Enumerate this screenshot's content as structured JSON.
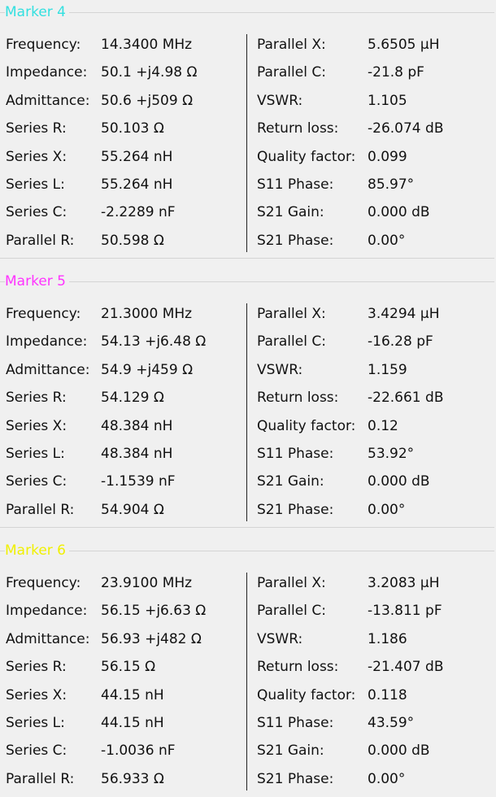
{
  "markers": [
    {
      "title": "Marker 4",
      "title_color": "#33e0e0",
      "left": [
        {
          "label": "Frequency:",
          "value": "14.3400 MHz"
        },
        {
          "label": "Impedance:",
          "value": "50.1 +j4.98 Ω"
        },
        {
          "label": "Admittance:",
          "value": "50.6 +j509 Ω"
        },
        {
          "label": "Series R:",
          "value": "50.103 Ω"
        },
        {
          "label": "Series X:",
          "value": "55.264 nH"
        },
        {
          "label": "Series L:",
          "value": "55.264 nH"
        },
        {
          "label": "Series C:",
          "value": "-2.2289 nF"
        },
        {
          "label": "Parallel R:",
          "value": "50.598 Ω"
        }
      ],
      "right": [
        {
          "label": "Parallel X:",
          "value": "5.6505 µH"
        },
        {
          "label": "Parallel C:",
          "value": "-21.8 pF"
        },
        {
          "label": "VSWR:",
          "value": "1.105"
        },
        {
          "label": "Return loss:",
          "value": "-26.074 dB"
        },
        {
          "label": "Quality factor:",
          "value": "0.099"
        },
        {
          "label": "S11 Phase:",
          "value": "85.97°"
        },
        {
          "label": "S21 Gain:",
          "value": "0.000 dB"
        },
        {
          "label": "S21 Phase:",
          "value": "0.00°"
        }
      ]
    },
    {
      "title": "Marker 5",
      "title_color": "#ff33ff",
      "left": [
        {
          "label": "Frequency:",
          "value": "21.3000 MHz"
        },
        {
          "label": "Impedance:",
          "value": "54.13 +j6.48 Ω"
        },
        {
          "label": "Admittance:",
          "value": "54.9 +j459 Ω"
        },
        {
          "label": "Series R:",
          "value": "54.129 Ω"
        },
        {
          "label": "Series X:",
          "value": "48.384 nH"
        },
        {
          "label": "Series L:",
          "value": "48.384 nH"
        },
        {
          "label": "Series C:",
          "value": "-1.1539 nF"
        },
        {
          "label": "Parallel R:",
          "value": "54.904 Ω"
        }
      ],
      "right": [
        {
          "label": "Parallel X:",
          "value": "3.4294 µH"
        },
        {
          "label": "Parallel C:",
          "value": "-16.28 pF"
        },
        {
          "label": "VSWR:",
          "value": "1.159"
        },
        {
          "label": "Return loss:",
          "value": "-22.661 dB"
        },
        {
          "label": "Quality factor:",
          "value": "0.12"
        },
        {
          "label": "S11 Phase:",
          "value": "53.92°"
        },
        {
          "label": "S21 Gain:",
          "value": "0.000 dB"
        },
        {
          "label": "S21 Phase:",
          "value": "0.00°"
        }
      ]
    },
    {
      "title": "Marker 6",
      "title_color": "#f0f000",
      "left": [
        {
          "label": "Frequency:",
          "value": "23.9100 MHz"
        },
        {
          "label": "Impedance:",
          "value": "56.15 +j6.63 Ω"
        },
        {
          "label": "Admittance:",
          "value": "56.93 +j482 Ω"
        },
        {
          "label": "Series R:",
          "value": "56.15 Ω"
        },
        {
          "label": "Series X:",
          "value": "44.15 nH"
        },
        {
          "label": "Series L:",
          "value": "44.15 nH"
        },
        {
          "label": "Series C:",
          "value": "-1.0036 nF"
        },
        {
          "label": "Parallel R:",
          "value": "56.933 Ω"
        }
      ],
      "right": [
        {
          "label": "Parallel X:",
          "value": "3.2083 µH"
        },
        {
          "label": "Parallel C:",
          "value": "-13.811 pF"
        },
        {
          "label": "VSWR:",
          "value": "1.186"
        },
        {
          "label": "Return loss:",
          "value": "-21.407 dB"
        },
        {
          "label": "Quality factor:",
          "value": "0.118"
        },
        {
          "label": "S11 Phase:",
          "value": "43.59°"
        },
        {
          "label": "S21 Gain:",
          "value": "0.000 dB"
        },
        {
          "label": "S21 Phase:",
          "value": "0.00°"
        }
      ]
    }
  ]
}
